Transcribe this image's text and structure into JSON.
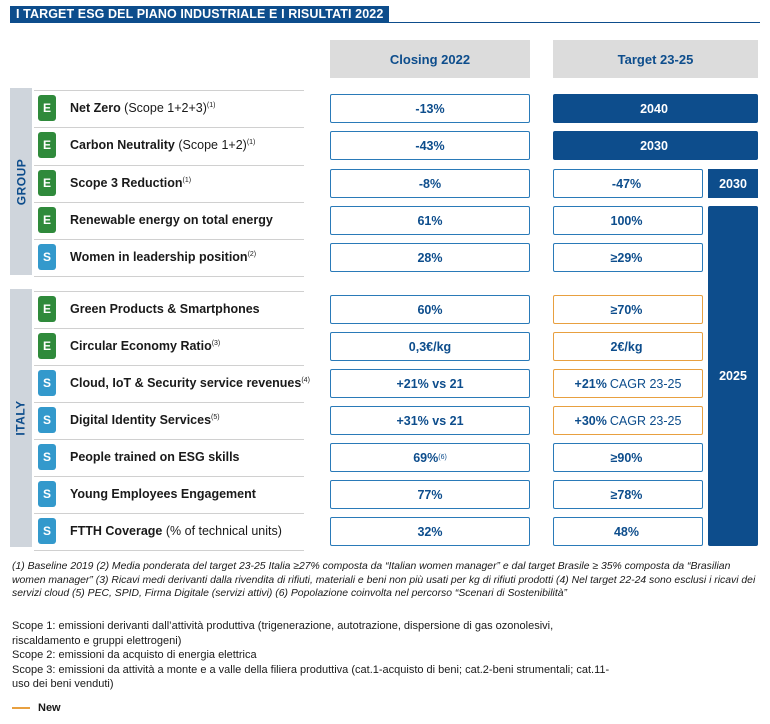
{
  "title": "I TARGET ESG DEL PIANO INDUSTRIALE E I RISULTATI 2022",
  "columns": {
    "closing": "Closing 2022",
    "target": "Target 23-25"
  },
  "groups": {
    "group": "GROUP",
    "italy": "ITALY"
  },
  "rows": [
    {
      "tag": "E",
      "label": "Net Zero",
      "label_light": " (Scope 1+2+3)",
      "note": "(1)",
      "closing": "-13%",
      "closing_note": "",
      "target": "2040",
      "target_light": ""
    },
    {
      "tag": "E",
      "label": "Carbon Neutrality",
      "label_light": " (Scope 1+2)",
      "note": "(1)",
      "closing": "-43%",
      "closing_note": "",
      "target": "2030",
      "target_light": ""
    },
    {
      "tag": "E",
      "label": "Scope 3 Reduction",
      "label_light": "",
      "note": "(1)",
      "closing": "-8%",
      "closing_note": "",
      "target": "-47%",
      "target_light": ""
    },
    {
      "tag": "E",
      "label": "Renewable energy on total energy",
      "label_light": "",
      "note": "",
      "closing": "61%",
      "closing_note": "",
      "target": "100%",
      "target_light": ""
    },
    {
      "tag": "S",
      "label": "Women in leadership position",
      "label_light": "",
      "note": "(2)",
      "closing": "28%",
      "closing_note": "",
      "target": "≥29%",
      "target_light": ""
    },
    {
      "tag": "E",
      "label": "Green Products & Smartphones",
      "label_light": "",
      "note": "",
      "closing": "60%",
      "closing_note": "",
      "target": "≥70%",
      "target_light": ""
    },
    {
      "tag": "E",
      "label": "Circular Economy Ratio",
      "label_light": "",
      "note": "(3)",
      "closing": "0,3€/kg",
      "closing_note": "",
      "target": "2€/kg",
      "target_light": ""
    },
    {
      "tag": "S",
      "label": "Cloud, IoT & Security service revenues",
      "label_light": "",
      "note": "(4)",
      "closing": "+21% vs 21",
      "closing_note": "",
      "target": "+21%",
      "target_light": "CAGR 23-25"
    },
    {
      "tag": "S",
      "label": "Digital Identity Services",
      "label_light": "",
      "note": "(5)",
      "closing": "+31% vs 21",
      "closing_note": "",
      "target": "+30%",
      "target_light": "CAGR 23-25"
    },
    {
      "tag": "S",
      "label": "People trained on ESG skills",
      "label_light": "",
      "note": "",
      "closing": "69%",
      "closing_note": "(6)",
      "target": "≥90%",
      "target_light": ""
    },
    {
      "tag": "S",
      "label": "Young Employees Engagement",
      "label_light": "",
      "note": "",
      "closing": "77%",
      "closing_note": "",
      "target": "≥78%",
      "target_light": ""
    },
    {
      "tag": "S",
      "label": "FTTH Coverage",
      "label_light": " (% of technical units)",
      "note": "",
      "closing": "32%",
      "closing_note": "",
      "target": "48%",
      "target_light": ""
    }
  ],
  "year_blocks": {
    "scope3_year": "2030",
    "main_year": "2025"
  },
  "footnotes": "(1) Baseline 2019 (2) Media ponderata del target 23-25 Italia ≥27% composta da “Italian women manager” e dal target Brasile ≥ 35% composta da “Brasilian women manager” (3) Ricavi medi derivanti dalla rivendita di rifiuti, materiali e beni non più usati per kg di rifiuti prodotti (4) Nel target 22-24 sono esclusi i ricavi dei servizi cloud (5) PEC, SPID, Firma Digitale (servizi attivi) (6) Popolazione coinvolta nel percorso “Scenari di Sostenibilità”",
  "scopes": [
    {
      "name": "Scope 1:",
      "text": " emissioni derivanti dall’attività produttiva (trigenerazione, autotrazione, dispersione di gas ozonolesivi, riscaldamento e gruppi elettrogeni)"
    },
    {
      "name": "Scope 2:",
      "text": " emissioni da acquisto di energia elettrica"
    },
    {
      "name": "Scope 3:",
      "text": " emissioni  da attività a monte e a valle della filiera produttiva (cat.1-acquisto di beni; cat.2-beni strumentali; cat.11-uso dei beni venduti)"
    }
  ],
  "legend": {
    "new_label": "New"
  },
  "colors": {
    "navy": "#0d4d8c",
    "env_green": "#2f8a3b",
    "social_blue": "#3399cc",
    "new_orange": "#e8a040"
  }
}
